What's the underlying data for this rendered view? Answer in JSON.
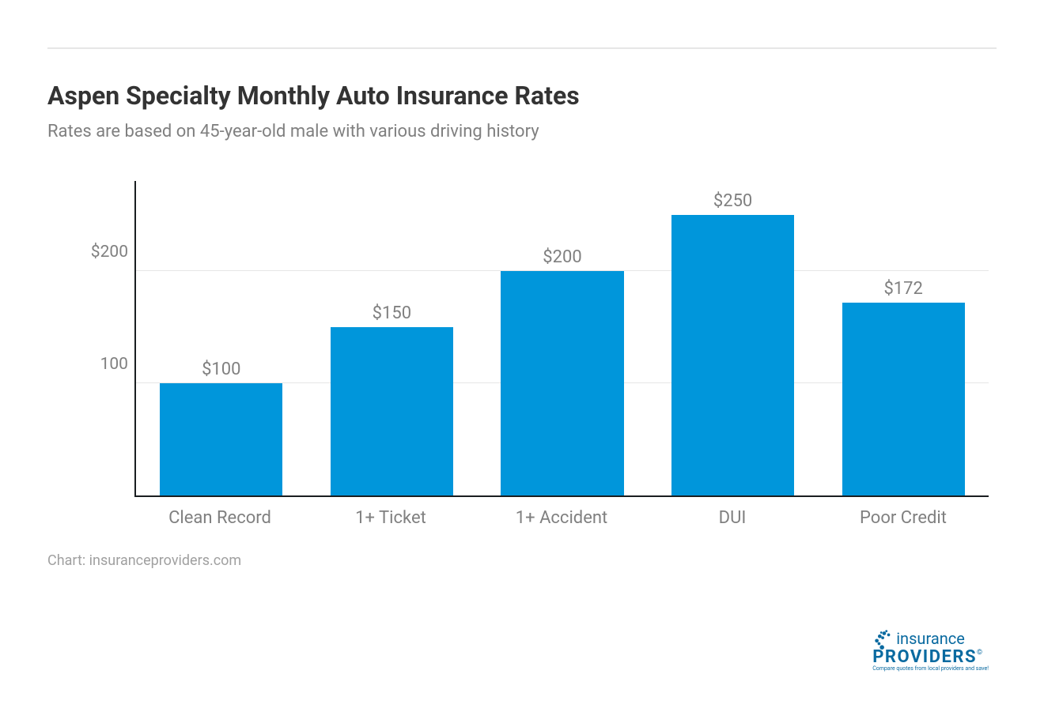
{
  "title": "Aspen Specialty Monthly Auto Insurance Rates",
  "subtitle": "Rates are based on 45-year-old male with various driving history",
  "source": "Chart: insuranceproviders.com",
  "chart": {
    "type": "bar",
    "categories": [
      "Clean Record",
      "1+ Ticket",
      "1+ Accident",
      "DUI",
      "Poor Credit"
    ],
    "values": [
      100,
      150,
      200,
      250,
      172
    ],
    "value_labels": [
      "$100",
      "$150",
      "$200",
      "$250",
      "$172"
    ],
    "bar_color": "#0096db",
    "ymax": 280,
    "yticks": [
      {
        "v": 100,
        "label": "100"
      },
      {
        "v": 200,
        "label": "$200"
      }
    ],
    "grid_color": "#e6e6e6",
    "axis_color": "#1a1e21",
    "label_color": "#808080",
    "title_fontsize": 32,
    "subtitle_fontsize": 22,
    "category_fontsize": 22,
    "value_label_fontsize": 22
  },
  "logo": {
    "top_word": "insurance",
    "bottom_word": "PROVIDERS",
    "tagline": "Compare quotes from local providers and save!",
    "color": "#0a6aa0"
  }
}
